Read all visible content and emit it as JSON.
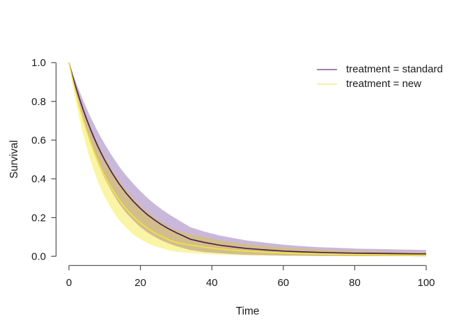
{
  "chart_data": {
    "type": "line",
    "title": "",
    "xlabel": "Time",
    "ylabel": "Survival",
    "xlim": [
      0,
      100
    ],
    "ylim": [
      0.0,
      1.0
    ],
    "xticks": [
      0,
      20,
      40,
      60,
      80,
      100
    ],
    "yticks": [
      0.0,
      0.2,
      0.4,
      0.6,
      0.8,
      1.0
    ],
    "grid": false,
    "legend_position": "top-right",
    "x": [
      0,
      1,
      2,
      3,
      4,
      5,
      6,
      7,
      8,
      9,
      10,
      12,
      14,
      16,
      18,
      20,
      22,
      24,
      26,
      28,
      30,
      34,
      38,
      42,
      46,
      50,
      55,
      60,
      65,
      70,
      75,
      80,
      85,
      90,
      95,
      100
    ],
    "series": [
      {
        "name": "treatment = standard",
        "values": [
          1.0,
          0.932,
          0.869,
          0.811,
          0.756,
          0.705,
          0.657,
          0.613,
          0.571,
          0.533,
          0.497,
          0.432,
          0.375,
          0.326,
          0.284,
          0.247,
          0.214,
          0.187,
          0.162,
          0.141,
          0.122,
          0.088,
          0.071,
          0.058,
          0.048,
          0.04,
          0.033,
          0.027,
          0.023,
          0.02,
          0.018,
          0.016,
          0.015,
          0.014,
          0.013,
          0.012
        ],
        "ci_upper": [
          1.0,
          0.947,
          0.896,
          0.849,
          0.804,
          0.761,
          0.72,
          0.683,
          0.646,
          0.612,
          0.58,
          0.52,
          0.465,
          0.417,
          0.375,
          0.336,
          0.3,
          0.27,
          0.242,
          0.217,
          0.194,
          0.15,
          0.127,
          0.108,
          0.094,
          0.081,
          0.07,
          0.06,
          0.053,
          0.047,
          0.044,
          0.04,
          0.038,
          0.036,
          0.034,
          0.032
        ],
        "ci_lower": [
          1.0,
          0.915,
          0.838,
          0.767,
          0.701,
          0.64,
          0.584,
          0.533,
          0.485,
          0.443,
          0.403,
          0.333,
          0.274,
          0.225,
          0.185,
          0.151,
          0.123,
          0.101,
          0.081,
          0.066,
          0.053,
          0.032,
          0.022,
          0.016,
          0.011,
          0.008,
          0.006,
          0.004,
          0.003,
          0.002,
          0.002,
          0.001,
          0.001,
          0.001,
          0.001,
          0.0
        ],
        "line_color": "#4E1F50",
        "band_color": "#C9B8D9",
        "legend_swatch_color": "#9C81A8"
      },
      {
        "name": "treatment = new",
        "values": [
          1.0,
          0.916,
          0.839,
          0.768,
          0.703,
          0.644,
          0.59,
          0.54,
          0.495,
          0.453,
          0.415,
          0.348,
          0.292,
          0.245,
          0.205,
          0.172,
          0.144,
          0.121,
          0.102,
          0.085,
          0.071,
          0.058,
          0.047,
          0.038,
          0.031,
          0.026,
          0.021,
          0.017,
          0.014,
          0.012,
          0.01,
          0.009,
          0.008,
          0.007,
          0.006,
          0.006
        ],
        "ci_upper": [
          1.0,
          0.936,
          0.875,
          0.818,
          0.765,
          0.716,
          0.67,
          0.626,
          0.586,
          0.548,
          0.513,
          0.448,
          0.392,
          0.343,
          0.3,
          0.262,
          0.229,
          0.201,
          0.176,
          0.154,
          0.134,
          0.115,
          0.098,
          0.083,
          0.071,
          0.062,
          0.053,
          0.045,
          0.039,
          0.035,
          0.03,
          0.028,
          0.025,
          0.023,
          0.021,
          0.02
        ],
        "ci_lower": [
          1.0,
          0.892,
          0.795,
          0.707,
          0.629,
          0.559,
          0.497,
          0.441,
          0.392,
          0.347,
          0.308,
          0.241,
          0.188,
          0.147,
          0.114,
          0.088,
          0.068,
          0.052,
          0.041,
          0.031,
          0.023,
          0.017,
          0.012,
          0.008,
          0.006,
          0.004,
          0.003,
          0.002,
          0.001,
          0.001,
          0.001,
          0.0,
          0.0,
          0.0,
          0.0,
          0.0
        ],
        "line_color": "#F0E442",
        "band_color": "#FAF5A6",
        "legend_swatch_color": "#F7F2A0"
      }
    ],
    "band_overlap_color": "#D2BE8B"
  },
  "colors": {
    "background": "#ffffff",
    "axis": "#5a5a5a",
    "text": "#1a1a1a"
  }
}
